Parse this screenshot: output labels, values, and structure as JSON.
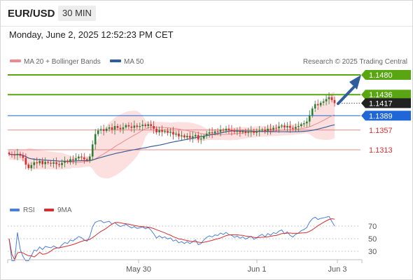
{
  "header": {
    "symbol": "EUR/USD",
    "timeframe": "30 MIN",
    "datetime": "Monday, June 2, 2025 12:52:23 PM CET"
  },
  "legend": {
    "items": [
      {
        "label": "MA 20 + Bollinger Bands",
        "color": "#f08a8a"
      },
      {
        "label": "MA 50",
        "color": "#2e5e9e"
      }
    ],
    "credit": "Research © 2025 Trading Central"
  },
  "colors": {
    "up": "#2e7d32",
    "down": "#d32f2f",
    "target": "#5aa512",
    "pivot": "#1f67d6",
    "support": "#e36a6a",
    "ma50": "#3b5f9a",
    "ma20": "#f08a8a",
    "band": "#fbd6d6",
    "arrow": "#2f5d9e",
    "rsi": "#4a7fd8",
    "rsi_ma": "#d32f2f"
  },
  "chart_data": [
    {
      "type": "candlestick",
      "title": "",
      "x_ticks": [
        "May 30",
        "Jun 1",
        "Jun 3"
      ],
      "ylim": [
        1.127,
        1.1495
      ],
      "levels": [
        {
          "value": 1.148,
          "label": "1.1480",
          "kind": "target"
        },
        {
          "value": 1.1436,
          "label": "1.1436",
          "kind": "target"
        },
        {
          "value": 1.1417,
          "label": "1.1417",
          "kind": "last"
        },
        {
          "value": 1.1389,
          "label": "1.1389",
          "kind": "pivot"
        },
        {
          "value": 1.1357,
          "label": "1.1357",
          "kind": "support"
        },
        {
          "value": 1.1313,
          "label": "1.1313",
          "kind": "support"
        }
      ],
      "close": [
        1.1303,
        1.1302,
        1.1301,
        1.1304,
        1.13,
        1.1295,
        1.128,
        1.1272,
        1.1279,
        1.1285,
        1.1283,
        1.1288,
        1.1281,
        1.1286,
        1.1284,
        1.1282,
        1.1285,
        1.1281,
        1.1279,
        1.1284,
        1.1288,
        1.1286,
        1.1292,
        1.129,
        1.1294,
        1.1298,
        1.1296,
        1.1292,
        1.129,
        1.1298,
        1.1325,
        1.1348,
        1.1356,
        1.1359,
        1.1355,
        1.136,
        1.1363,
        1.1358,
        1.1366,
        1.1362,
        1.1359,
        1.1363,
        1.1368,
        1.1365,
        1.1362,
        1.1367,
        1.1364,
        1.1366,
        1.1369,
        1.1366,
        1.137,
        1.1366,
        1.136,
        1.1352,
        1.1357,
        1.1353,
        1.1355,
        1.1351,
        1.1353,
        1.1347,
        1.1349,
        1.1343,
        1.1345,
        1.1341,
        1.1344,
        1.134,
        1.1343,
        1.1346,
        1.1336,
        1.1338,
        1.1344,
        1.1349,
        1.1352,
        1.135,
        1.1354,
        1.1353,
        1.1358,
        1.1356,
        1.136,
        1.1357,
        1.1356,
        1.1353,
        1.1355,
        1.1352,
        1.1354,
        1.1351,
        1.1353,
        1.1355,
        1.1351,
        1.1353,
        1.1356,
        1.1358,
        1.1355,
        1.136,
        1.1358,
        1.1362,
        1.1361,
        1.1365,
        1.1367,
        1.1363,
        1.1366,
        1.1362,
        1.136,
        1.1364,
        1.1366,
        1.137,
        1.1372,
        1.1376,
        1.139,
        1.1405,
        1.1415,
        1.1412,
        1.1418,
        1.1421,
        1.1426,
        1.143,
        1.1424,
        1.1417
      ],
      "rsi": {
        "ticks": [
          30,
          50,
          70
        ],
        "legend": [
          {
            "label": "RSI",
            "color": "#4a7fd8"
          },
          {
            "label": "9MA",
            "color": "#d32f2f"
          }
        ]
      }
    }
  ]
}
